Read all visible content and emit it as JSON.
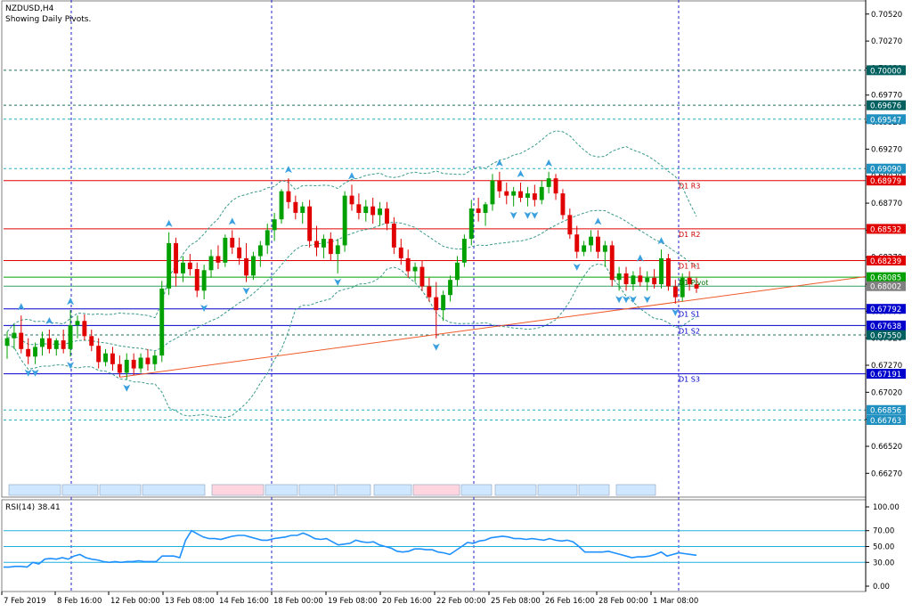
{
  "header": {
    "symbol_timeframe": "NZDUSD,H4",
    "subtitle": "Showing Daily Pivots."
  },
  "rsi_label": "RSI(14) 38.41",
  "colors": {
    "bull": "#00a000",
    "bear": "#e00000",
    "bollinger": "#3a9a8a",
    "trendline": "#f05a28",
    "pivot_blue": "#0000cc",
    "red_line": "#e00000",
    "green_line": "#00a000",
    "cyan_dash": "#20b0c0",
    "rsi_line": "#1e90ff",
    "grid_blue": "#2020cc"
  },
  "chart_data": [
    {
      "type": "candlestick",
      "title": "NZDUSD,H4",
      "ylim": [
        0.6605,
        0.7065
      ],
      "y_ticks": [
        "0.70520",
        "0.70270",
        "0.70020",
        "0.69770",
        "0.69520",
        "0.69270",
        "0.69020",
        "0.68770",
        "0.68520",
        "0.68270",
        "0.68020",
        "0.67770",
        "0.67520",
        "0.67270",
        "0.67020",
        "0.66770",
        "0.66520",
        "0.66270"
      ],
      "x_labels": [
        "7 Feb 2019",
        "8 Feb 16:00",
        "12 Feb 00:00",
        "13 Feb 08:00",
        "14 Feb 16:00",
        "18 Feb 00:00",
        "19 Feb 08:00",
        "20 Feb 16:00",
        "22 Feb 00:00",
        "25 Feb 08:00",
        "26 Feb 16:00",
        "28 Feb 00:00",
        "1 Mar 08:00"
      ],
      "price_tags": [
        {
          "value": "0.70000",
          "y": 0.7,
          "bg": "#006060"
        },
        {
          "value": "0.69676",
          "y": 0.69676,
          "bg": "#006060"
        },
        {
          "value": "0.69547",
          "y": 0.69547,
          "bg": "#2090c0"
        },
        {
          "value": "0.69090",
          "y": 0.6909,
          "bg": "#2090c0"
        },
        {
          "value": "0.68979",
          "y": 0.68979,
          "bg": "#e00000"
        },
        {
          "value": "0.68532",
          "y": 0.68532,
          "bg": "#e00000"
        },
        {
          "value": "0.68239",
          "y": 0.68239,
          "bg": "#e00000"
        },
        {
          "value": "0.68085",
          "y": 0.68085,
          "bg": "#00a000"
        },
        {
          "value": "0.68002",
          "y": 0.68002,
          "bg": "#808080"
        },
        {
          "value": "0.67792",
          "y": 0.67792,
          "bg": "#0000cc"
        },
        {
          "value": "0.67638",
          "y": 0.67638,
          "bg": "#0000cc"
        },
        {
          "value": "0.67550",
          "y": 0.6755,
          "bg": "#006060"
        },
        {
          "value": "0.67191",
          "y": 0.67191,
          "bg": "#0000cc"
        },
        {
          "value": "0.66856",
          "y": 0.66856,
          "bg": "#2090c0"
        },
        {
          "value": "0.66763",
          "y": 0.66763,
          "bg": "#2090c0"
        }
      ],
      "pivot_labels": [
        {
          "text": "D1 R3",
          "y": 0.68979
        },
        {
          "text": "D1 R2",
          "y": 0.68532
        },
        {
          "text": "D1 R1",
          "y": 0.68239
        },
        {
          "text": "D1 Pivot",
          "y": 0.68085
        },
        {
          "text": "D1 S1",
          "y": 0.67792
        },
        {
          "text": "D1 S2",
          "y": 0.67638
        },
        {
          "text": "D1 S3",
          "y": 0.67191
        }
      ],
      "candles": [
        {
          "o": 0.6745,
          "h": 0.6758,
          "l": 0.6733,
          "c": 0.6752
        },
        {
          "o": 0.6752,
          "h": 0.6765,
          "l": 0.6742,
          "c": 0.6757
        },
        {
          "o": 0.6757,
          "h": 0.6773,
          "l": 0.6738,
          "c": 0.6742
        },
        {
          "o": 0.6742,
          "h": 0.6752,
          "l": 0.6728,
          "c": 0.6735
        },
        {
          "o": 0.6735,
          "h": 0.6748,
          "l": 0.6728,
          "c": 0.6744
        },
        {
          "o": 0.6744,
          "h": 0.6758,
          "l": 0.6736,
          "c": 0.6752
        },
        {
          "o": 0.6752,
          "h": 0.676,
          "l": 0.6738,
          "c": 0.6742
        },
        {
          "o": 0.6742,
          "h": 0.6752,
          "l": 0.6736,
          "c": 0.675
        },
        {
          "o": 0.675,
          "h": 0.676,
          "l": 0.6738,
          "c": 0.6742
        },
        {
          "o": 0.6742,
          "h": 0.6778,
          "l": 0.6735,
          "c": 0.6764
        },
        {
          "o": 0.6764,
          "h": 0.6773,
          "l": 0.6752,
          "c": 0.6768
        },
        {
          "o": 0.6768,
          "h": 0.6774,
          "l": 0.675,
          "c": 0.6754
        },
        {
          "o": 0.6754,
          "h": 0.676,
          "l": 0.674,
          "c": 0.6745
        },
        {
          "o": 0.6745,
          "h": 0.6752,
          "l": 0.6724,
          "c": 0.673
        },
        {
          "o": 0.673,
          "h": 0.6742,
          "l": 0.6726,
          "c": 0.6738
        },
        {
          "o": 0.6738,
          "h": 0.6744,
          "l": 0.6722,
          "c": 0.6728
        },
        {
          "o": 0.6728,
          "h": 0.6736,
          "l": 0.6716,
          "c": 0.672
        },
        {
          "o": 0.672,
          "h": 0.6738,
          "l": 0.6714,
          "c": 0.6732
        },
        {
          "o": 0.6732,
          "h": 0.6738,
          "l": 0.6718,
          "c": 0.6724
        },
        {
          "o": 0.6724,
          "h": 0.6738,
          "l": 0.672,
          "c": 0.6734
        },
        {
          "o": 0.6734,
          "h": 0.6742,
          "l": 0.6722,
          "c": 0.6728
        },
        {
          "o": 0.6728,
          "h": 0.674,
          "l": 0.6722,
          "c": 0.6736
        },
        {
          "o": 0.6736,
          "h": 0.6805,
          "l": 0.673,
          "c": 0.6798
        },
        {
          "o": 0.6798,
          "h": 0.685,
          "l": 0.6792,
          "c": 0.684
        },
        {
          "o": 0.684,
          "h": 0.6845,
          "l": 0.68,
          "c": 0.6812
        },
        {
          "o": 0.6812,
          "h": 0.6828,
          "l": 0.6804,
          "c": 0.6822
        },
        {
          "o": 0.6822,
          "h": 0.683,
          "l": 0.681,
          "c": 0.6816
        },
        {
          "o": 0.6816,
          "h": 0.6822,
          "l": 0.679,
          "c": 0.6796
        },
        {
          "o": 0.6796,
          "h": 0.682,
          "l": 0.6788,
          "c": 0.6815
        },
        {
          "o": 0.6815,
          "h": 0.6834,
          "l": 0.6808,
          "c": 0.6828
        },
        {
          "o": 0.6828,
          "h": 0.6838,
          "l": 0.6816,
          "c": 0.6822
        },
        {
          "o": 0.6822,
          "h": 0.6848,
          "l": 0.6818,
          "c": 0.6845
        },
        {
          "o": 0.6845,
          "h": 0.6852,
          "l": 0.683,
          "c": 0.6836
        },
        {
          "o": 0.6836,
          "h": 0.6845,
          "l": 0.682,
          "c": 0.6826
        },
        {
          "o": 0.6826,
          "h": 0.684,
          "l": 0.6804,
          "c": 0.681
        },
        {
          "o": 0.681,
          "h": 0.6832,
          "l": 0.6806,
          "c": 0.6828
        },
        {
          "o": 0.6828,
          "h": 0.6842,
          "l": 0.6818,
          "c": 0.6838
        },
        {
          "o": 0.6838,
          "h": 0.6858,
          "l": 0.683,
          "c": 0.6852
        },
        {
          "o": 0.6852,
          "h": 0.6868,
          "l": 0.6842,
          "c": 0.6862
        },
        {
          "o": 0.6862,
          "h": 0.689,
          "l": 0.6858,
          "c": 0.6888
        },
        {
          "o": 0.6888,
          "h": 0.69,
          "l": 0.6872,
          "c": 0.6878
        },
        {
          "o": 0.6878,
          "h": 0.6884,
          "l": 0.6862,
          "c": 0.6868
        },
        {
          "o": 0.6868,
          "h": 0.6878,
          "l": 0.6858,
          "c": 0.6874
        },
        {
          "o": 0.6874,
          "h": 0.688,
          "l": 0.6836,
          "c": 0.6842
        },
        {
          "o": 0.6842,
          "h": 0.6856,
          "l": 0.6828,
          "c": 0.6836
        },
        {
          "o": 0.6836,
          "h": 0.6848,
          "l": 0.6826,
          "c": 0.6844
        },
        {
          "o": 0.6844,
          "h": 0.685,
          "l": 0.6824,
          "c": 0.683
        },
        {
          "o": 0.683,
          "h": 0.6844,
          "l": 0.6812,
          "c": 0.6838
        },
        {
          "o": 0.6838,
          "h": 0.6888,
          "l": 0.6832,
          "c": 0.6884
        },
        {
          "o": 0.6884,
          "h": 0.6894,
          "l": 0.687,
          "c": 0.6876
        },
        {
          "o": 0.6876,
          "h": 0.6886,
          "l": 0.6862,
          "c": 0.6868
        },
        {
          "o": 0.6868,
          "h": 0.688,
          "l": 0.686,
          "c": 0.6874
        },
        {
          "o": 0.6874,
          "h": 0.6882,
          "l": 0.6858,
          "c": 0.6866
        },
        {
          "o": 0.6866,
          "h": 0.6878,
          "l": 0.6856,
          "c": 0.6872
        },
        {
          "o": 0.6872,
          "h": 0.6878,
          "l": 0.6852,
          "c": 0.6858
        },
        {
          "o": 0.6858,
          "h": 0.6864,
          "l": 0.683,
          "c": 0.6836
        },
        {
          "o": 0.6836,
          "h": 0.6844,
          "l": 0.682,
          "c": 0.6826
        },
        {
          "o": 0.6826,
          "h": 0.6834,
          "l": 0.6808,
          "c": 0.6814
        },
        {
          "o": 0.6814,
          "h": 0.6822,
          "l": 0.6804,
          "c": 0.6818
        },
        {
          "o": 0.6818,
          "h": 0.6824,
          "l": 0.6796,
          "c": 0.68
        },
        {
          "o": 0.68,
          "h": 0.6808,
          "l": 0.6786,
          "c": 0.679
        },
        {
          "o": 0.679,
          "h": 0.6804,
          "l": 0.6752,
          "c": 0.6778
        },
        {
          "o": 0.6778,
          "h": 0.6796,
          "l": 0.6768,
          "c": 0.6792
        },
        {
          "o": 0.6792,
          "h": 0.681,
          "l": 0.6786,
          "c": 0.6806
        },
        {
          "o": 0.6806,
          "h": 0.6828,
          "l": 0.68,
          "c": 0.6822
        },
        {
          "o": 0.6822,
          "h": 0.6848,
          "l": 0.6818,
          "c": 0.6844
        },
        {
          "o": 0.6844,
          "h": 0.688,
          "l": 0.6838,
          "c": 0.6872
        },
        {
          "o": 0.6872,
          "h": 0.6882,
          "l": 0.686,
          "c": 0.6868
        },
        {
          "o": 0.6868,
          "h": 0.6878,
          "l": 0.6856,
          "c": 0.6876
        },
        {
          "o": 0.6876,
          "h": 0.6904,
          "l": 0.687,
          "c": 0.6898
        },
        {
          "o": 0.6898,
          "h": 0.6906,
          "l": 0.6882,
          "c": 0.6888
        },
        {
          "o": 0.6888,
          "h": 0.6896,
          "l": 0.6876,
          "c": 0.6884
        },
        {
          "o": 0.6884,
          "h": 0.6892,
          "l": 0.6874,
          "c": 0.6888
        },
        {
          "o": 0.6888,
          "h": 0.6896,
          "l": 0.6878,
          "c": 0.6882
        },
        {
          "o": 0.6882,
          "h": 0.6892,
          "l": 0.6874,
          "c": 0.6886
        },
        {
          "o": 0.6886,
          "h": 0.6894,
          "l": 0.6874,
          "c": 0.688
        },
        {
          "o": 0.688,
          "h": 0.6898,
          "l": 0.6876,
          "c": 0.6892
        },
        {
          "o": 0.6892,
          "h": 0.6906,
          "l": 0.6886,
          "c": 0.69
        },
        {
          "o": 0.69,
          "h": 0.6904,
          "l": 0.688,
          "c": 0.6886
        },
        {
          "o": 0.6886,
          "h": 0.689,
          "l": 0.6862,
          "c": 0.6866
        },
        {
          "o": 0.6866,
          "h": 0.6872,
          "l": 0.6844,
          "c": 0.6848
        },
        {
          "o": 0.6848,
          "h": 0.6856,
          "l": 0.6826,
          "c": 0.6832
        },
        {
          "o": 0.6832,
          "h": 0.6842,
          "l": 0.6828,
          "c": 0.6838
        },
        {
          "o": 0.6838,
          "h": 0.6852,
          "l": 0.6832,
          "c": 0.6846
        },
        {
          "o": 0.6846,
          "h": 0.6852,
          "l": 0.6826,
          "c": 0.6832
        },
        {
          "o": 0.6832,
          "h": 0.6842,
          "l": 0.6818,
          "c": 0.6838
        },
        {
          "o": 0.6838,
          "h": 0.6842,
          "l": 0.68,
          "c": 0.6806
        },
        {
          "o": 0.6806,
          "h": 0.6818,
          "l": 0.6796,
          "c": 0.6812
        },
        {
          "o": 0.6812,
          "h": 0.6818,
          "l": 0.6796,
          "c": 0.6802
        },
        {
          "o": 0.6802,
          "h": 0.6814,
          "l": 0.6796,
          "c": 0.681
        },
        {
          "o": 0.681,
          "h": 0.6818,
          "l": 0.68,
          "c": 0.6804
        },
        {
          "o": 0.6804,
          "h": 0.6814,
          "l": 0.6796,
          "c": 0.6808
        },
        {
          "o": 0.6808,
          "h": 0.6816,
          "l": 0.6798,
          "c": 0.6802
        },
        {
          "o": 0.6802,
          "h": 0.6834,
          "l": 0.6798,
          "c": 0.6826
        },
        {
          "o": 0.6826,
          "h": 0.683,
          "l": 0.6796,
          "c": 0.68
        },
        {
          "o": 0.68,
          "h": 0.6806,
          "l": 0.6784,
          "c": 0.679
        },
        {
          "o": 0.679,
          "h": 0.6812,
          "l": 0.6786,
          "c": 0.6808
        },
        {
          "o": 0.6808,
          "h": 0.6814,
          "l": 0.6796,
          "c": 0.6802
        },
        {
          "o": 0.6802,
          "h": 0.6808,
          "l": 0.6794,
          "c": 0.6798
        }
      ]
    },
    {
      "type": "line",
      "title": "RSI(14) 38.41",
      "ylim": [
        0,
        100
      ],
      "y_ticks": [
        "100.00",
        "70.00",
        "50.00",
        "30.00",
        "0.00"
      ],
      "levels": [
        70,
        50,
        30
      ],
      "values": [
        24,
        24,
        25,
        25,
        24,
        30,
        28,
        34,
        35,
        34,
        36,
        34,
        38,
        40,
        36,
        34,
        33,
        31,
        30,
        31,
        30,
        31,
        31,
        32,
        31,
        31,
        31,
        38,
        38,
        38,
        36,
        58,
        70,
        66,
        62,
        60,
        60,
        59,
        61,
        63,
        64,
        64,
        62,
        60,
        58,
        58,
        60,
        61,
        62,
        64,
        64,
        67,
        64,
        60,
        59,
        60,
        56,
        52,
        53,
        54,
        58,
        56,
        55,
        56,
        52,
        50,
        48,
        44,
        43,
        44,
        47,
        47,
        46,
        46,
        43,
        42,
        40,
        45,
        50,
        55,
        54,
        57,
        58,
        61,
        62,
        63,
        62,
        60,
        60,
        59,
        60,
        59,
        58,
        60,
        58,
        57,
        58,
        56,
        50,
        43,
        43,
        43,
        43,
        44,
        42,
        40,
        38,
        36,
        37,
        37,
        38,
        40,
        43,
        38,
        40,
        42,
        41,
        40,
        39
      ]
    }
  ]
}
